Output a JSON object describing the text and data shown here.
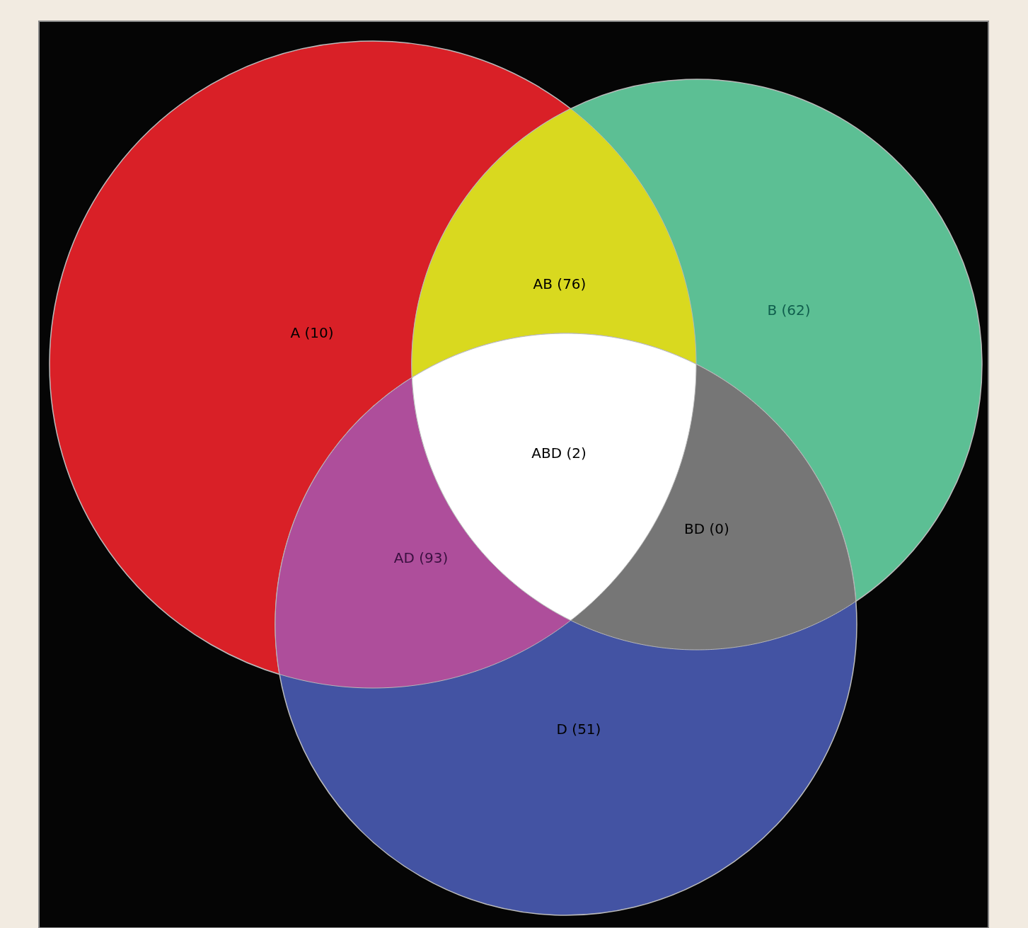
{
  "chart_data": {
    "type": "other",
    "categories": [
      "A",
      "B",
      "D",
      "AB",
      "AD",
      "BD",
      "ABD"
    ],
    "values": [
      10,
      62,
      51,
      76,
      93,
      0,
      2
    ],
    "value_labels": [
      "(10)",
      "(62)",
      "(51)",
      "(76)",
      "(93)",
      "(0)",
      "(2)"
    ],
    "colors": [
      "#d92027",
      "#5cbf94",
      "#4353a3",
      "#d9d91f",
      "#ae4e9b",
      "#767676",
      "#ffffff"
    ]
  }
}
